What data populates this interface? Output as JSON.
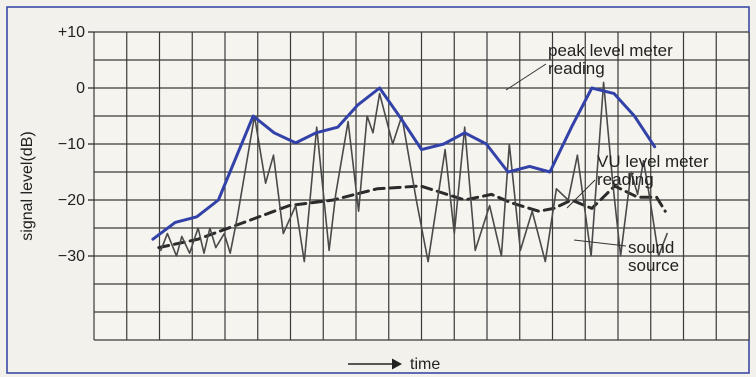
{
  "chart_data": {
    "type": "line",
    "title": "",
    "xlabel": "time",
    "ylabel": "signal level(dB)",
    "ylim": [
      -45,
      10
    ],
    "xlim": [
      0,
      100
    ],
    "grid": true,
    "y_ticks": [
      {
        "value": 10,
        "label": "+10"
      },
      {
        "value": 0,
        "label": "0"
      },
      {
        "value": -10,
        "label": "−10"
      },
      {
        "value": -20,
        "label": "−20"
      },
      {
        "value": -30,
        "label": "−30"
      }
    ],
    "series": [
      {
        "name": "peak level meter reading",
        "color": "#3342a8",
        "style": "solid",
        "x": [
          9.0,
          12.4,
          15.7,
          19.0,
          24.3,
          27.5,
          30.8,
          33.9,
          37.2,
          40.3,
          43.6,
          46.9,
          50.0,
          53.4,
          56.6,
          59.9,
          63.2,
          66.5,
          69.6,
          72.9,
          76.0,
          79.4,
          82.5,
          85.6
        ],
        "y": [
          -27,
          -24,
          -23,
          -20,
          -5,
          -8,
          -9.8,
          -8,
          -7,
          -3,
          0,
          -5.5,
          -11,
          -10,
          -8,
          -10,
          -15,
          -14,
          -15,
          -7,
          0,
          -1,
          -5,
          -10.5
        ]
      },
      {
        "name": "VU level meter reading",
        "color": "#2b2b2b",
        "style": "dashed",
        "x": [
          9.9,
          15.9,
          22.9,
          29.8,
          36.5,
          43.2,
          49.9,
          56.6,
          60.7,
          63.7,
          67.9,
          70.2,
          72.9,
          76.0,
          79.5,
          83.0,
          85.9,
          87.2
        ],
        "y": [
          -28.5,
          -27,
          -24,
          -21,
          -20,
          -18,
          -17.5,
          -20,
          -19,
          -20.5,
          -22,
          -21.5,
          -20,
          -21.5,
          -17.5,
          -19.5,
          -19.5,
          -22
        ]
      },
      {
        "name": "sound source",
        "color": "#4a4a4a",
        "style": "solid",
        "x": [
          10.2,
          11.2,
          12.6,
          13.4,
          14.6,
          15.9,
          16.8,
          17.7,
          18.6,
          19.9,
          20.8,
          21.9,
          24.5,
          26.2,
          27.4,
          28.9,
          30.8,
          32.1,
          34.0,
          35.9,
          36.9,
          38.8,
          40.4,
          41.7,
          42.6,
          43.6,
          45.6,
          47.0,
          49.2,
          51.0,
          53.6,
          55.0,
          56.6,
          58.2,
          60.4,
          62.2,
          63.4,
          65.1,
          66.9,
          68.9,
          70.6,
          72.4,
          73.8,
          75.9,
          77.8,
          79.2,
          80.4,
          82.0,
          83.0,
          83.9,
          84.9,
          86.2,
          87.5
        ],
        "y": [
          -29,
          -26,
          -30,
          -26.5,
          -29.5,
          -25,
          -29.5,
          -25,
          -28.5,
          -26,
          -29.5,
          -23,
          -5,
          -17,
          -12,
          -26,
          -21,
          -31,
          -7,
          -29,
          -19,
          -6,
          -22,
          -5,
          -8,
          -1,
          -10,
          -5,
          -20,
          -31,
          -11,
          -26,
          -7,
          -29,
          -21,
          -30,
          -10,
          -29,
          -22,
          -31,
          -18,
          -20,
          -12,
          -30,
          1,
          -17,
          -30,
          -15,
          -19,
          -13,
          -20,
          -30,
          -26
        ]
      }
    ],
    "annotations": [
      {
        "lines": [
          "peak level meter",
          "reading"
        ],
        "series": "peak level meter reading"
      },
      {
        "lines": [
          "VU level meter",
          "reading"
        ],
        "series": "VU level meter reading"
      },
      {
        "lines": [
          "sound",
          "source"
        ],
        "series": "sound source"
      }
    ]
  }
}
